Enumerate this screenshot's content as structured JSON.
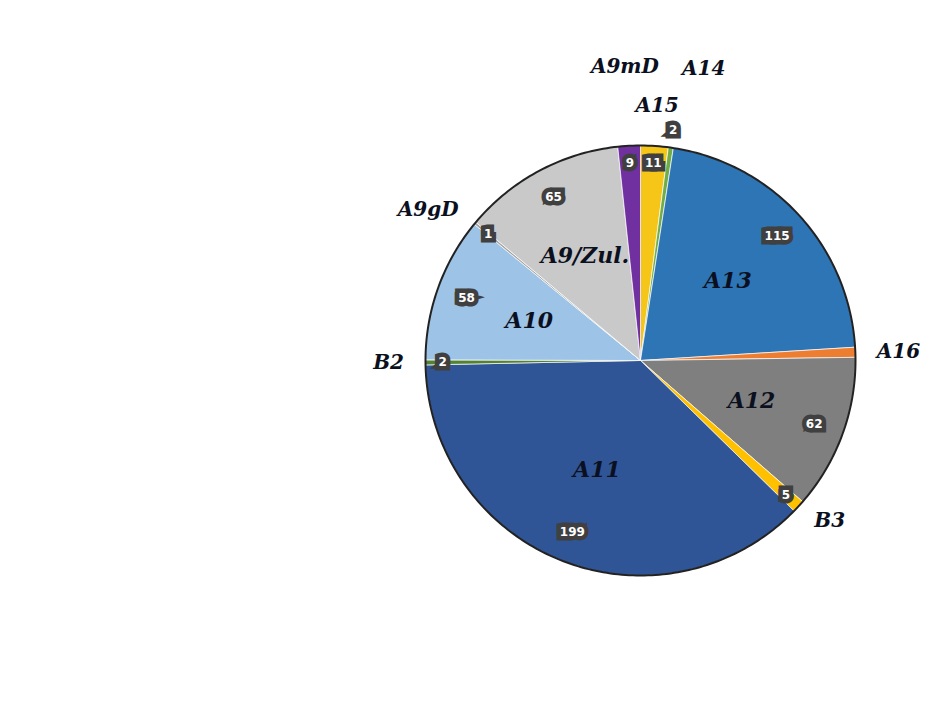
{
  "chart_data": {
    "type": "pie",
    "categories": [
      "A15",
      "A14",
      "A13",
      "A16",
      "A12",
      "B3",
      "A11",
      "B2",
      "A10",
      "A9gD",
      "A9/Zul.",
      "A9mD"
    ],
    "values": [
      11,
      2,
      115,
      4,
      62,
      5,
      199,
      2,
      58,
      1,
      65,
      9
    ],
    "value_labels": [
      "11",
      "2",
      "115",
      null,
      "62",
      "5",
      "199",
      "2",
      "58",
      "1",
      "65",
      "9"
    ],
    "colors": [
      "#f5c518",
      "#70ad47",
      "#2e75b6",
      "#ed7d31",
      "#7f7f7f",
      "#ffc000",
      "#2f5597",
      "#548235",
      "#9dc3e6",
      "#a5a5a5",
      "#c9c9c9",
      "#7030a0"
    ],
    "data_labels": true
  }
}
